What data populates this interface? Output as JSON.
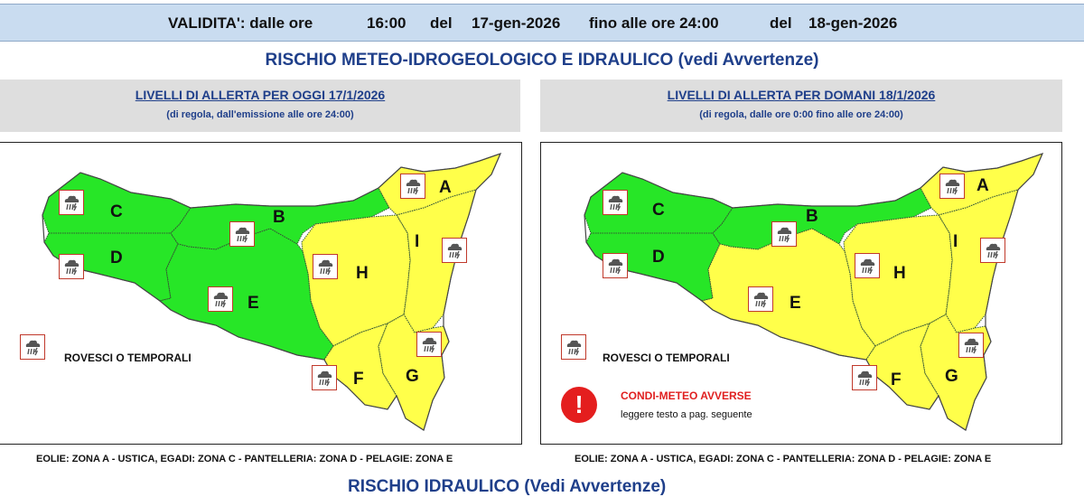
{
  "validity": {
    "label": "VALIDITA': dalle ore",
    "start_time": "16:00",
    "del1": "del",
    "start_date": "17-gen-2026",
    "until": "fino alle ore 24:00",
    "del2": "del",
    "end_date": "18-gen-2026"
  },
  "main_title": "RISCHIO METEO-IDROGEOLOGICO E IDRAULICO (vedi Avvertenze)",
  "today": {
    "heading": "LIVELLI DI ALLERTA PER OGGI 17/1/2026",
    "subheading": "(di regola, dall'emissione alle ore 24:00)",
    "zones": {
      "A": "yellow",
      "B": "green",
      "C": "green",
      "D": "green",
      "E": "green",
      "F": "yellow",
      "G": "yellow",
      "H": "yellow",
      "I": "yellow"
    },
    "legend": "ROVESCI O TEMPORALI",
    "footnote": "EOLIE: ZONA A - USTICA, EGADI: ZONA C - PANTELLERIA: ZONA D - PELAGIE: ZONA E"
  },
  "tomorrow": {
    "heading": "LIVELLI DI ALLERTA PER DOMANI 18/1/2026",
    "subheading": "(di regola, dalle ore 0:00 fino alle ore 24:00)",
    "zones": {
      "A": "yellow",
      "B": "green",
      "C": "green",
      "D": "green",
      "E": "yellow",
      "F": "yellow",
      "G": "yellow",
      "H": "yellow",
      "I": "yellow"
    },
    "legend": "ROVESCI O TEMPORALI",
    "warning_mark": "!",
    "warning_title": "CONDI-METEO AVVERSE",
    "warning_sub": "leggere testo a pag. seguente",
    "footnote": "EOLIE: ZONA A - USTICA, EGADI: ZONA C - PANTELLERIA: ZONA D - PELAGIE: ZONA E"
  },
  "colors": {
    "green": "#27e627",
    "yellow": "#ffff4a",
    "header_band": "#c9dcf0",
    "panel_head": "#dedede",
    "title_blue": "#1f3f8a",
    "icon_border": "#c0392b",
    "warning_red": "#e41e1e"
  },
  "icons": {
    "storm": "storm-cloud-icon",
    "warning": "exclamation-circle-icon"
  },
  "next_section_title": "RISCHIO IDRAULICO (Vedi Avvertenze)"
}
